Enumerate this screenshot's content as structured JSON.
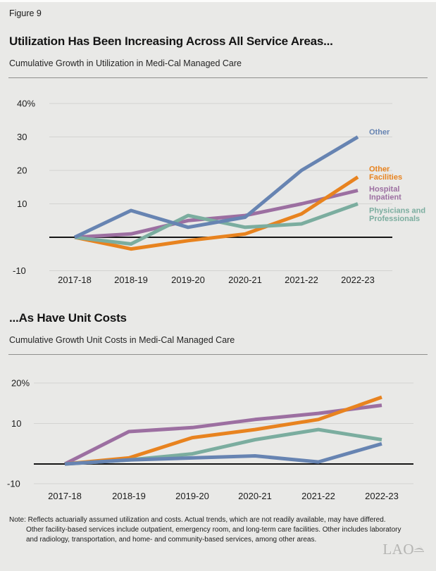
{
  "page": {
    "figure_label": "Figure 9",
    "note": {
      "lines": [
        "Note: Reflects actuarially assumed utilization and costs. Actual trends, which are not readily available, may have differed.",
        "Other facility-based services include outpatient, emergency room, and long-term care facilities. Other includes laboratory",
        "and radiology, transportation, and home- and community-based services, among other areas."
      ]
    },
    "logo_text": "LAO"
  },
  "colors": {
    "background": "#e9e9e7",
    "other": "#6784b2",
    "other_facilities": "#e8831f",
    "hospital_inpatient": "#9c6fa1",
    "physicians_professionals": "#7bad9f",
    "gridline": "#d3d3d1",
    "zero_line": "#151515"
  },
  "chart_data": [
    {
      "type": "line",
      "title": "Utilization Has Been Increasing Across All Service Areas...",
      "subtitle": "Cumulative Growth in Utilization in Medi-Cal Managed Care",
      "categories": [
        "2017-18",
        "2018-19",
        "2019-20",
        "2020-21",
        "2021-22",
        "2022-23"
      ],
      "unit": "percent cumulative growth",
      "ylim": [
        -10,
        44
      ],
      "grid": true,
      "legend_position": "right-of-line-ends",
      "yticks": [
        {
          "label": "40%",
          "value": 40
        },
        {
          "label": "30",
          "value": 30
        },
        {
          "label": "20",
          "value": 20
        },
        {
          "label": "10",
          "value": 10
        },
        {
          "label": "-10",
          "value": -10
        }
      ],
      "series": [
        {
          "name": "Other",
          "color": "#6784b2",
          "values": [
            0,
            8,
            3,
            6,
            20,
            30
          ],
          "label_lines": [
            "Other"
          ]
        },
        {
          "name": "Other Facilities",
          "color": "#e8831f",
          "values": [
            0,
            -3.5,
            -1,
            1,
            7,
            18
          ],
          "label_lines": [
            "Other",
            "Facilities"
          ]
        },
        {
          "name": "Hospital Inpatient",
          "color": "#9c6fa1",
          "values": [
            0,
            1,
            5,
            6.5,
            10,
            14
          ],
          "label_lines": [
            "Hospital",
            "Inpatient"
          ]
        },
        {
          "name": "Physicians and Professionals",
          "color": "#7bad9f",
          "values": [
            0,
            -2,
            6.5,
            3,
            4,
            10
          ],
          "label_lines": [
            "Physicians and",
            "Professionals"
          ]
        }
      ]
    },
    {
      "type": "line",
      "title": "...As Have Unit Costs",
      "subtitle": "Cumulative Growth Unit Costs in Medi-Cal Managed Care",
      "categories": [
        "2017-18",
        "2018-19",
        "2019-20",
        "2020-21",
        "2021-22",
        "2022-23"
      ],
      "unit": "percent cumulative growth",
      "ylim": [
        -10,
        22
      ],
      "grid": true,
      "legend_position": "none",
      "yticks": [
        {
          "label": "20%",
          "value": 20
        },
        {
          "label": "10",
          "value": 10
        },
        {
          "label": "-10",
          "value": -10
        }
      ],
      "series": [
        {
          "name": "Other",
          "color": "#6784b2",
          "values": [
            0,
            1,
            1.5,
            2,
            0.5,
            5
          ]
        },
        {
          "name": "Other Facilities",
          "color": "#e8831f",
          "values": [
            0,
            1.5,
            6.5,
            8.5,
            11,
            16.5
          ]
        },
        {
          "name": "Hospital Inpatient",
          "color": "#9c6fa1",
          "values": [
            0,
            8,
            9,
            11,
            12.5,
            14.5
          ]
        },
        {
          "name": "Physicians and Professionals",
          "color": "#7bad9f",
          "values": [
            0,
            1,
            2.5,
            6,
            8.5,
            6
          ]
        }
      ]
    }
  ]
}
